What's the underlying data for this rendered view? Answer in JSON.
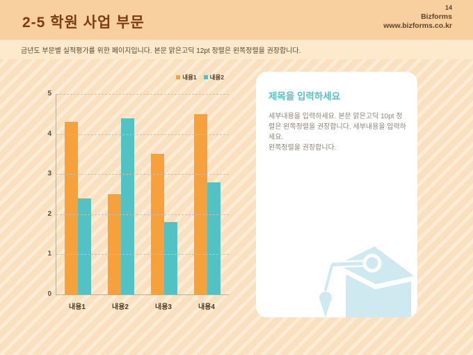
{
  "slide": {
    "page_number": "14",
    "brand": "Bizforms",
    "website": "www.bizforms.co.kr",
    "title": "2-5 학원 사업 부문",
    "subtitle": "금년도 부문별 실적평가를 위한 페이지입니다. 본문 맑은고딕 12pt 정렬은 왼쪽정렬을 권장합니다."
  },
  "chart_data": {
    "type": "bar",
    "categories": [
      "내용1",
      "내용2",
      "내용3",
      "내용4"
    ],
    "series": [
      {
        "name": "내용1",
        "color": "#f7a13c",
        "values": [
          4.3,
          2.5,
          3.5,
          4.5
        ]
      },
      {
        "name": "내용2",
        "color": "#52c2c4",
        "values": [
          2.4,
          4.4,
          1.8,
          2.8
        ]
      }
    ],
    "title": "",
    "xlabel": "",
    "ylabel": "",
    "ylim": [
      0,
      5
    ],
    "yticks": [
      0,
      1,
      2,
      3,
      4,
      5
    ],
    "grid": true,
    "gridline_style": "dashed",
    "legend_position": "top-right"
  },
  "card": {
    "title": "제목을 입력하세요",
    "body_line1": "세부내용을 입력하세요. 본문 맑은고딕 10pt 정렬은 왼쪽정렬을 권장합니다. 세부내용을 입력하세요.",
    "body_line2": "왼쪽정렬을 권장합니다.",
    "icon": "graduation-cap-icon"
  },
  "colors": {
    "header-band": "#f8d0a0",
    "subtitle-strip": "#fdeacd",
    "body-bg": "#f9e0be",
    "body-stripe": "#fcecd6",
    "title-text": "#7e3a15",
    "subtitle-text": "#5c4430",
    "meta-text": "#5d4326",
    "grid-line": "#c9c0ad",
    "axis-line": "#b9b09c",
    "tick-text": "#55504a",
    "xlabel-text": "#4a3a26",
    "card-bg": "#ffffff",
    "card-title": "#56c1c3",
    "card-text": "#8b8374",
    "cap-icon": "#cfe9f1"
  }
}
